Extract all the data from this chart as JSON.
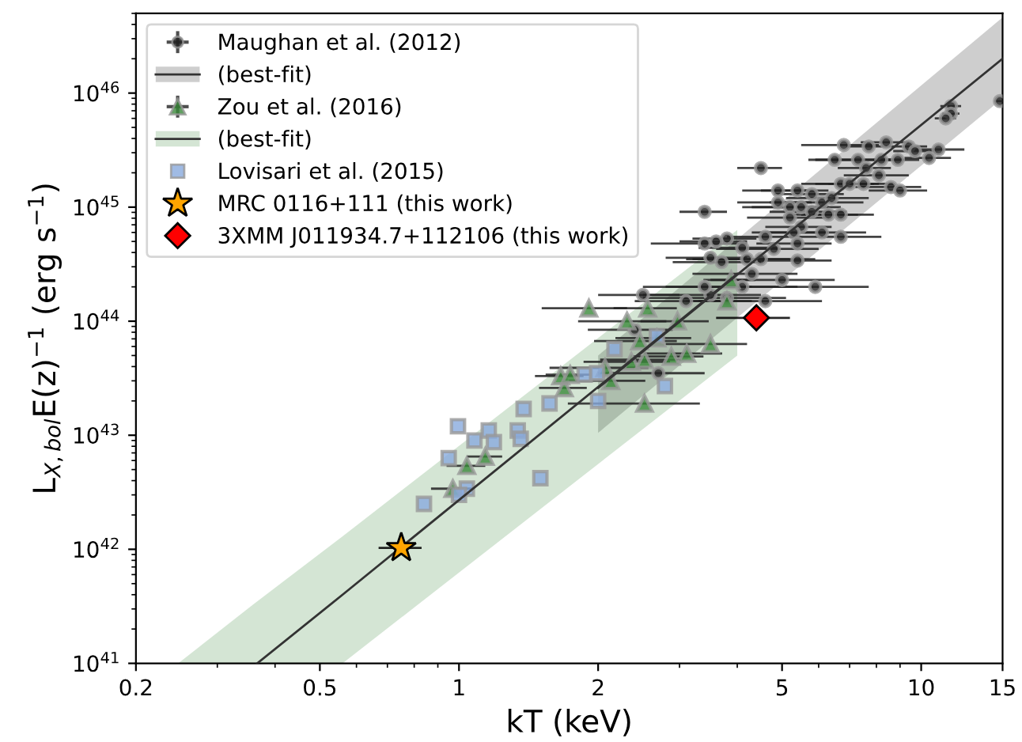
{
  "chart_data": {
    "type": "scatter",
    "xlabel": "kT (keV)",
    "ylabel": "L$_{X,bol}$E(z)$^{−1}$ (erg s$^{−1}$)",
    "log": "xy",
    "grid": false,
    "legend": "top left",
    "xlim": [
      0.2,
      15
    ],
    "ylim": [
      1e+41,
      5e+46
    ],
    "xticks": [
      0.2,
      0.5,
      1,
      2,
      5,
      10,
      15
    ],
    "yticks": [
      {
        "value": 1e+41,
        "label": "10$^{41}$"
      },
      {
        "value": 1e+42,
        "label": "10$^{42}$"
      },
      {
        "value": 1e+43,
        "label": "10$^{43}$"
      },
      {
        "value": 1e+44,
        "label": "10$^{44}$"
      },
      {
        "value": 1e+45,
        "label": "10$^{45}$"
      },
      {
        "value": 1e+46,
        "label": "10$^{46}$"
      }
    ],
    "series": [
      {
        "name": "Maughan et al. (2012)",
        "marker": "circle",
        "color": "#222222",
        "x": [
          11.6,
          11.6,
          11.3,
          14.8,
          6.8,
          7.7,
          8.4,
          8.2,
          8.9,
          9.4,
          9.7,
          10.4,
          10.9,
          6.5,
          7.3,
          7.6,
          4.5,
          4.9,
          5.4,
          5.8,
          6.7,
          7.0,
          7.5,
          8.1,
          8.6,
          9.0,
          4.9,
          5.2,
          5.5,
          6.1,
          6.4,
          5.8,
          6.3,
          6.7,
          5.2,
          5.5,
          5.3,
          6.1,
          6.7,
          4.6,
          5.4,
          3.4,
          3.8,
          3.6,
          3.4,
          4.1,
          4.8,
          4.5,
          5.4,
          3.5,
          4.2,
          4.3,
          5.0,
          5.9,
          4.6,
          3.5,
          2.5,
          3.1,
          3.4,
          4.1,
          2.4,
          2.7,
          3.7,
          3.8
        ],
        "values": [
          7.7e+45,
          6.6e+45,
          6e+45,
          8.5e+45,
          3.5e+45,
          3.4e+45,
          3.7e+45,
          2.6e+45,
          2.6e+45,
          3.4e+45,
          3.1e+45,
          2.7e+45,
          3.2e+45,
          2.6e+45,
          2.6e+45,
          2.2e+45,
          2.2e+45,
          1.4e+45,
          1.4e+45,
          1.3e+45,
          1.6e+45,
          1.6e+45,
          1.6e+45,
          1.9e+45,
          1.5e+45,
          1.4e+45,
          1.1e+45,
          1e+45,
          1e+45,
          1.1e+45,
          1.2e+45,
          9.1e+44,
          8.6e+44,
          8.6e+44,
          8.1e+44,
          6.7e+44,
          6e+44,
          6e+44,
          5.5e+44,
          5.5e+44,
          4.8e+44,
          9.1e+44,
          5.3e+44,
          5e+44,
          4.8e+44,
          4.4e+44,
          4.3e+44,
          3.5e+44,
          3.4e+44,
          3.6e+44,
          3.5e+44,
          2.6e+44,
          2.3e+44,
          2e+44,
          1.5e+44,
          1.7e+44,
          1.7e+44,
          1.5e+44,
          2e+44,
          2e+44,
          8.4e+43,
          3.5e+43,
          3.3e+44,
          1.6e+44
        ],
        "xerrors": [
          0.6,
          0.5,
          0.6,
          0.4,
          1.3,
          0.8,
          1.0,
          0.9,
          1.0,
          0.9,
          1.0,
          1.2,
          1.5,
          0.8,
          1.4,
          1.0,
          0.5,
          0.8,
          0.9,
          1.0,
          1.2,
          1.1,
          1.2,
          1.3,
          1.4,
          1.3,
          0.9,
          1.1,
          1.2,
          1.4,
          1.3,
          1.1,
          1.0,
          1.2,
          1.0,
          0.9,
          1.0,
          1.5,
          1.5,
          0.8,
          1.0,
          0.4,
          0.6,
          0.6,
          0.8,
          0.8,
          1.2,
          1.4,
          1.0,
          0.7,
          1.0,
          1.1,
          1.5,
          1.8,
          1.5,
          1.0,
          0.5,
          0.7,
          0.9,
          1.3,
          0.5,
          0.7,
          0.8,
          1.3
        ]
      },
      {
        "name": "(best-fit)",
        "type": "line",
        "color": "#333333",
        "x": [
          2,
          15
        ],
        "values": [
          2.6e+43,
          2e+46
        ],
        "lower": [
          1.05e+43,
          9e+45
        ],
        "upper": [
          5e+43,
          4.6e+46
        ]
      },
      {
        "name": "Zou et al. (2016)",
        "marker": "triangle",
        "color": "#3a8a3a",
        "x": [
          1.91,
          2.31,
          2.56,
          2.97,
          2.68,
          2.46,
          2.07,
          2.36,
          2.52,
          2.88,
          3.11,
          3.5,
          2.13,
          1.69,
          1.66,
          1.74,
          2.52,
          3.8,
          3.88,
          1.04,
          1.14,
          0.97
        ],
        "values": [
          1.3e+44,
          1e+44,
          1.3e+44,
          1e+44,
          7.1e+43,
          6.7e+43,
          3.9e+43,
          4.4e+43,
          4.6e+43,
          4.9e+43,
          5.2e+43,
          6.3e+43,
          3e+43,
          2.6e+43,
          3.3e+43,
          3.4e+43,
          1.9e+43,
          1.5e+44,
          2.3e+44,
          5.4e+42,
          6.5e+42,
          3.4e+42
        ],
        "xerrors": [
          0.4,
          0.5,
          0.4,
          0.5,
          0.5,
          0.5,
          0.5,
          0.5,
          0.5,
          0.5,
          0.6,
          0.7,
          0.4,
          0.2,
          0.2,
          0.2,
          0.8,
          0.5,
          0.5,
          0.1,
          0.1,
          0.1
        ]
      },
      {
        "name": "(best-fit)",
        "type": "line",
        "color": "#333333",
        "x": [
          0.247,
          0.366,
          0.56,
          4.0
        ],
        "values": [
          null,
          1e+41,
          4e+41,
          2.6e+44
        ],
        "lower": [
          1e+41,
          1e+41,
          1e+41,
          5e+43
        ],
        "upper": [
          1e+41,
          3.5e+41,
          1.3e+42,
          6.3e+44
        ]
      },
      {
        "name": "Lovisari et al. (2015)",
        "marker": "square",
        "color": "#88aadd",
        "x": [
          0.995,
          1.08,
          1.16,
          1.19,
          1.34,
          1.36,
          0.95,
          1.04,
          1.0,
          0.84,
          1.5,
          1.38,
          1.57,
          2.17,
          1.87,
          1.99,
          2.0,
          2.79,
          2.68
        ],
        "values": [
          1.2e+43,
          9e+42,
          1.1e+43,
          8.7e+42,
          1.1e+43,
          9.3e+42,
          6.3e+42,
          3.4e+42,
          3e+42,
          2.5e+42,
          4.2e+42,
          1.7e+43,
          1.9e+43,
          5.7e+43,
          3.4e+43,
          3.5e+43,
          2e+43,
          2.7e+43,
          7.4e+43
        ]
      },
      {
        "name": "MRC 0116+111 (this work)",
        "marker": "star",
        "color": "#ffa500",
        "x": [
          0.75
        ],
        "values": [
          1.03e+42
        ],
        "xerrors": [
          0.08
        ]
      },
      {
        "name": "3XMM J011934.7+112106 (this work)",
        "marker": "diamond",
        "color": "#ff0000",
        "x": [
          4.4
        ],
        "values": [
          1.07e+44
        ],
        "xerrors": [
          0.8
        ]
      }
    ]
  }
}
